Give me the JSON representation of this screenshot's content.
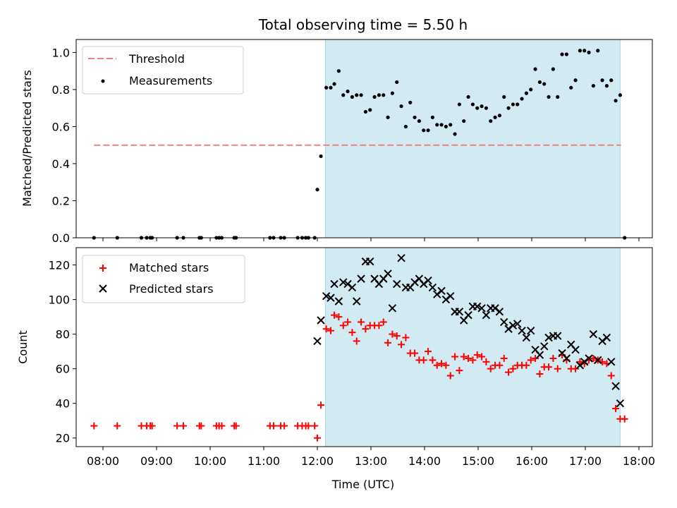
{
  "title": "Total observing time = 5.50 h",
  "xlabel": "Time (UTC)",
  "x_tick_labels": [
    "08:00",
    "09:00",
    "10:00",
    "11:00",
    "12:00",
    "13:00",
    "14:00",
    "15:00",
    "16:00",
    "17:00",
    "18:00"
  ],
  "colors": {
    "threshold": "#f08080",
    "span": "#add8e6",
    "matched": "#ff0000",
    "predicted": "#000000",
    "measurement": "#000000"
  },
  "chart_data": [
    {
      "type": "scatter",
      "ylabel": "Matched/Predicted stars",
      "ylim": [
        0,
        1.07
      ],
      "xlim": [
        "07:30",
        "18:15"
      ],
      "y_ticks": [
        "0.0",
        "0.2",
        "0.4",
        "0.6",
        "0.8",
        "1.0"
      ],
      "legend_position": "top-left",
      "observing_window": [
        "12:09",
        "17:39"
      ],
      "threshold": {
        "name": "Threshold",
        "y": 0.5,
        "x_range": [
          "07:50",
          "17:40"
        ]
      },
      "series": [
        {
          "name": "Measurements",
          "points": [
            [
              "07:50",
              0
            ],
            [
              "08:16",
              0
            ],
            [
              "08:43",
              0
            ],
            [
              "08:49",
              0
            ],
            [
              "08:53",
              0
            ],
            [
              "08:55",
              0
            ],
            [
              "09:23",
              0
            ],
            [
              "09:30",
              0
            ],
            [
              "09:48",
              0
            ],
            [
              "09:50",
              0
            ],
            [
              "10:07",
              0
            ],
            [
              "10:10",
              0
            ],
            [
              "10:13",
              0
            ],
            [
              "10:27",
              0
            ],
            [
              "10:29",
              0
            ],
            [
              "11:07",
              0
            ],
            [
              "11:11",
              0
            ],
            [
              "11:19",
              0
            ],
            [
              "11:23",
              0
            ],
            [
              "11:38",
              0
            ],
            [
              "11:43",
              0
            ],
            [
              "11:47",
              0
            ],
            [
              "11:50",
              0
            ],
            [
              "11:57",
              0
            ],
            [
              "12:00",
              0.26
            ],
            [
              "12:04",
              0.44
            ],
            [
              "12:10",
              0.81
            ],
            [
              "12:15",
              0.81
            ],
            [
              "12:19",
              0.83
            ],
            [
              "12:24",
              0.9
            ],
            [
              "12:29",
              0.77
            ],
            [
              "12:34",
              0.79
            ],
            [
              "12:39",
              0.76
            ],
            [
              "12:44",
              0.77
            ],
            [
              "12:49",
              0.77
            ],
            [
              "12:54",
              0.68
            ],
            [
              "12:59",
              0.69
            ],
            [
              "13:04",
              0.76
            ],
            [
              "13:09",
              0.77
            ],
            [
              "13:14",
              0.77
            ],
            [
              "13:19",
              0.65
            ],
            [
              "13:24",
              0.78
            ],
            [
              "13:29",
              0.84
            ],
            [
              "13:34",
              0.71
            ],
            [
              "13:39",
              0.6
            ],
            [
              "13:44",
              0.73
            ],
            [
              "13:49",
              0.65
            ],
            [
              "13:54",
              0.63
            ],
            [
              "13:59",
              0.58
            ],
            [
              "14:04",
              0.58
            ],
            [
              "14:09",
              0.65
            ],
            [
              "14:14",
              0.61
            ],
            [
              "14:19",
              0.61
            ],
            [
              "14:24",
              0.6
            ],
            [
              "14:29",
              0.61
            ],
            [
              "14:34",
              0.56
            ],
            [
              "14:39",
              0.72
            ],
            [
              "14:44",
              0.63
            ],
            [
              "14:49",
              0.76
            ],
            [
              "14:54",
              0.72
            ],
            [
              "14:59",
              0.7
            ],
            [
              "15:04",
              0.71
            ],
            [
              "15:09",
              0.7
            ],
            [
              "15:14",
              0.63
            ],
            [
              "15:19",
              0.65
            ],
            [
              "15:24",
              0.66
            ],
            [
              "15:29",
              0.76
            ],
            [
              "15:34",
              0.7
            ],
            [
              "15:39",
              0.72
            ],
            [
              "15:44",
              0.72
            ],
            [
              "15:49",
              0.75
            ],
            [
              "15:54",
              0.78
            ],
            [
              "15:59",
              0.8
            ],
            [
              "16:04",
              0.91
            ],
            [
              "16:09",
              0.84
            ],
            [
              "16:14",
              0.83
            ],
            [
              "16:19",
              0.76
            ],
            [
              "16:24",
              0.91
            ],
            [
              "16:29",
              0.76
            ],
            [
              "16:34",
              0.99
            ],
            [
              "16:39",
              0.99
            ],
            [
              "16:44",
              0.81
            ],
            [
              "16:49",
              0.85
            ],
            [
              "16:54",
              1.01
            ],
            [
              "16:59",
              1.01
            ],
            [
              "17:04",
              1.0
            ],
            [
              "17:09",
              0.82
            ],
            [
              "17:14",
              1.01
            ],
            [
              "17:19",
              0.85
            ],
            [
              "17:24",
              0.82
            ],
            [
              "17:29",
              0.85
            ],
            [
              "17:34",
              0.74
            ],
            [
              "17:39",
              0.77
            ],
            [
              "17:44",
              0
            ]
          ]
        }
      ]
    },
    {
      "type": "scatter",
      "ylabel": "Count",
      "ylim": [
        15,
        130
      ],
      "xlim": [
        "07:30",
        "18:15"
      ],
      "y_ticks": [
        "20",
        "40",
        "60",
        "80",
        "100",
        "120"
      ],
      "legend_position": "top-left",
      "observing_window": [
        "12:09",
        "17:39"
      ],
      "series": [
        {
          "name": "Matched stars",
          "marker": "plus",
          "points": [
            [
              "07:50",
              27
            ],
            [
              "08:16",
              27
            ],
            [
              "08:43",
              27
            ],
            [
              "08:49",
              27
            ],
            [
              "08:53",
              27
            ],
            [
              "08:55",
              27
            ],
            [
              "09:23",
              27
            ],
            [
              "09:30",
              27
            ],
            [
              "09:48",
              27
            ],
            [
              "09:50",
              27
            ],
            [
              "10:07",
              27
            ],
            [
              "10:10",
              27
            ],
            [
              "10:13",
              27
            ],
            [
              "10:27",
              27
            ],
            [
              "10:29",
              27
            ],
            [
              "11:07",
              27
            ],
            [
              "11:11",
              27
            ],
            [
              "11:19",
              27
            ],
            [
              "11:23",
              27
            ],
            [
              "11:38",
              27
            ],
            [
              "11:43",
              27
            ],
            [
              "11:47",
              27
            ],
            [
              "11:50",
              27
            ],
            [
              "11:57",
              27
            ],
            [
              "12:00",
              20
            ],
            [
              "12:04",
              39
            ],
            [
              "12:10",
              83
            ],
            [
              "12:15",
              82
            ],
            [
              "12:19",
              91
            ],
            [
              "12:24",
              90
            ],
            [
              "12:29",
              85
            ],
            [
              "12:34",
              87
            ],
            [
              "12:39",
              81
            ],
            [
              "12:44",
              76
            ],
            [
              "12:49",
              87
            ],
            [
              "12:54",
              83
            ],
            [
              "12:59",
              85
            ],
            [
              "13:04",
              85
            ],
            [
              "13:09",
              85
            ],
            [
              "13:14",
              87
            ],
            [
              "13:19",
              75
            ],
            [
              "13:24",
              80
            ],
            [
              "13:29",
              79
            ],
            [
              "13:34",
              74
            ],
            [
              "13:39",
              78
            ],
            [
              "13:44",
              69
            ],
            [
              "13:49",
              69
            ],
            [
              "13:54",
              65
            ],
            [
              "13:59",
              65
            ],
            [
              "14:04",
              70
            ],
            [
              "14:09",
              65
            ],
            [
              "14:14",
              62
            ],
            [
              "14:19",
              63
            ],
            [
              "14:24",
              62
            ],
            [
              "14:29",
              56
            ],
            [
              "14:34",
              67
            ],
            [
              "14:39",
              59
            ],
            [
              "14:44",
              67
            ],
            [
              "14:49",
              66
            ],
            [
              "14:54",
              65
            ],
            [
              "14:59",
              68
            ],
            [
              "15:04",
              67
            ],
            [
              "15:09",
              64
            ],
            [
              "15:14",
              60
            ],
            [
              "15:19",
              62
            ],
            [
              "15:24",
              62
            ],
            [
              "15:29",
              66
            ],
            [
              "15:34",
              58
            ],
            [
              "15:39",
              60
            ],
            [
              "15:44",
              62
            ],
            [
              "15:49",
              62
            ],
            [
              "15:54",
              62
            ],
            [
              "15:59",
              65
            ],
            [
              "16:04",
              66
            ],
            [
              "16:09",
              57
            ],
            [
              "16:14",
              61
            ],
            [
              "16:19",
              61
            ],
            [
              "16:24",
              66
            ],
            [
              "16:29",
              60
            ],
            [
              "16:34",
              68
            ],
            [
              "16:39",
              65
            ],
            [
              "16:44",
              60
            ],
            [
              "16:49",
              60
            ],
            [
              "16:54",
              64
            ],
            [
              "16:59",
              63
            ],
            [
              "17:04",
              65
            ],
            [
              "17:09",
              66
            ],
            [
              "17:14",
              65
            ],
            [
              "17:19",
              64
            ],
            [
              "17:24",
              63
            ],
            [
              "17:29",
              56
            ],
            [
              "17:34",
              37
            ],
            [
              "17:39",
              31
            ],
            [
              "17:44",
              31
            ]
          ]
        },
        {
          "name": "Predicted stars",
          "marker": "x",
          "points": [
            [
              "12:00",
              76
            ],
            [
              "12:04",
              88
            ],
            [
              "12:10",
              102
            ],
            [
              "12:15",
              101
            ],
            [
              "12:19",
              109
            ],
            [
              "12:24",
              99
            ],
            [
              "12:29",
              110
            ],
            [
              "12:34",
              109
            ],
            [
              "12:39",
              107
            ],
            [
              "12:44",
              99
            ],
            [
              "12:49",
              112
            ],
            [
              "12:54",
              122
            ],
            [
              "12:59",
              122
            ],
            [
              "13:04",
              112
            ],
            [
              "13:09",
              109
            ],
            [
              "13:14",
              112
            ],
            [
              "13:19",
              115
            ],
            [
              "13:24",
              95
            ],
            [
              "13:29",
              109
            ],
            [
              "13:34",
              124
            ],
            [
              "13:39",
              107
            ],
            [
              "13:44",
              107
            ],
            [
              "13:49",
              110
            ],
            [
              "13:54",
              112
            ],
            [
              "13:59",
              109
            ],
            [
              "14:04",
              111
            ],
            [
              "14:09",
              107
            ],
            [
              "14:14",
              103
            ],
            [
              "14:19",
              105
            ],
            [
              "14:24",
              100
            ],
            [
              "14:29",
              102
            ],
            [
              "14:34",
              93
            ],
            [
              "14:39",
              93
            ],
            [
              "14:44",
              88
            ],
            [
              "14:49",
              91
            ],
            [
              "14:54",
              96
            ],
            [
              "14:59",
              96
            ],
            [
              "15:04",
              95
            ],
            [
              "15:09",
              91
            ],
            [
              "15:14",
              95
            ],
            [
              "15:19",
              95
            ],
            [
              "15:24",
              93
            ],
            [
              "15:29",
              87
            ],
            [
              "15:34",
              83
            ],
            [
              "15:39",
              85
            ],
            [
              "15:44",
              86
            ],
            [
              "15:49",
              82
            ],
            [
              "15:54",
              78
            ],
            [
              "15:59",
              82
            ],
            [
              "16:04",
              71
            ],
            [
              "16:09",
              68
            ],
            [
              "16:14",
              73
            ],
            [
              "16:19",
              78
            ],
            [
              "16:24",
              79
            ],
            [
              "16:29",
              79
            ],
            [
              "16:34",
              69
            ],
            [
              "16:39",
              66
            ],
            [
              "16:44",
              74
            ],
            [
              "16:49",
              71
            ],
            [
              "16:54",
              62
            ],
            [
              "16:59",
              64
            ],
            [
              "17:04",
              66
            ],
            [
              "17:09",
              80
            ],
            [
              "17:14",
              65
            ],
            [
              "17:19",
              76
            ],
            [
              "17:24",
              78
            ],
            [
              "17:29",
              64
            ],
            [
              "17:34",
              50
            ],
            [
              "17:39",
              40
            ]
          ]
        }
      ]
    }
  ]
}
